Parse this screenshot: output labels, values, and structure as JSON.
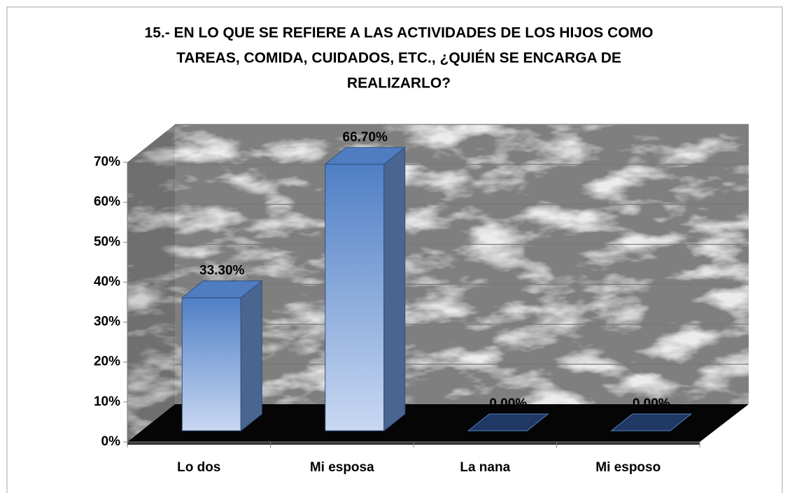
{
  "chart_data": {
    "type": "bar3d",
    "title": [
      "15.- EN LO QUE SE REFIERE A LAS ACTIVIDADES DE LOS HIJOS COMO",
      "TAREAS, COMIDA, CUIDADOS, ETC., ¿QUIÉN SE ENCARGA DE",
      "REALIZARLO?"
    ],
    "categories": [
      "Lo dos",
      "Mi esposa",
      "La nana",
      "Mi esposo"
    ],
    "values": [
      33.3,
      66.7,
      0,
      0
    ],
    "value_labels": [
      "33.30%",
      "66.70%",
      "0.00%",
      "0.00%"
    ],
    "color": "#4f7fc5",
    "ylim": [
      0,
      70
    ],
    "yticks": [
      {
        "value": 0,
        "label": "0%"
      },
      {
        "value": 10,
        "label": "10%"
      },
      {
        "value": 20,
        "label": "20%"
      },
      {
        "value": 30,
        "label": "30%"
      },
      {
        "value": 40,
        "label": "40%"
      },
      {
        "value": 50,
        "label": "50%"
      },
      {
        "value": 60,
        "label": "60%"
      },
      {
        "value": 70,
        "label": "70%"
      }
    ],
    "grid": true
  }
}
